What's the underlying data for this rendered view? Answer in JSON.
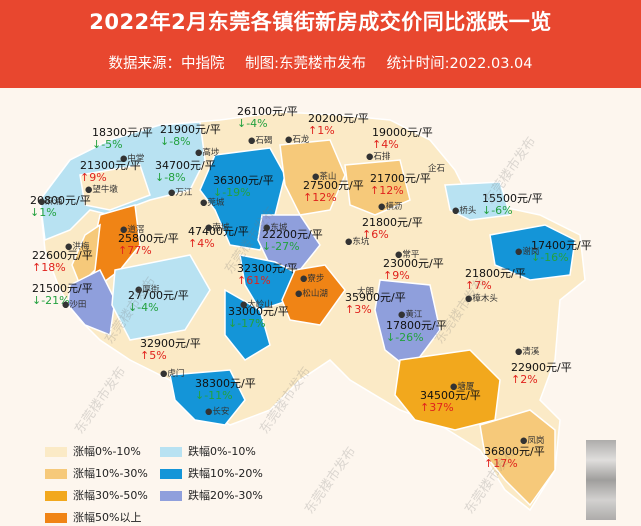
{
  "header": {
    "title": "2022年2月东莞各镇街新房成交价同比涨跌一览",
    "source": "数据来源：中指院",
    "producer": "制图:东莞楼市发布",
    "stat_time": "统计时间:2022.03.04"
  },
  "colors": {
    "up_0_10": "#fbeac6",
    "up_10_30": "#f6c97a",
    "up_30_50": "#f2a81d",
    "up_50_plus": "#f08415",
    "down_0_10": "#b8e2f2",
    "down_10_20": "#1495d8",
    "down_20_30": "#8f9fdc",
    "up_text": "#e0221c",
    "down_text": "#23a13f"
  },
  "legend": [
    {
      "label": "涨幅0%-10%",
      "color": "#fbeac6"
    },
    {
      "label": "跌幅0%-10%",
      "color": "#b8e2f2"
    },
    {
      "label": "涨幅10%-30%",
      "color": "#f6c97a"
    },
    {
      "label": "跌幅10%-20%",
      "color": "#1495d8"
    },
    {
      "label": "涨幅30%-50%",
      "color": "#f2a81d"
    },
    {
      "label": "跌幅20%-30%",
      "color": "#8f9fdc"
    },
    {
      "label": "涨幅50%以上",
      "color": "#f08415"
    }
  ],
  "towns": [
    {
      "name": "中堂",
      "price": "18300元/平",
      "change": "↓-5%",
      "dir": "down"
    },
    {
      "name": "高埗",
      "price": "21900元/平",
      "change": "↓-8%",
      "dir": "down"
    },
    {
      "name": "石碣",
      "price": "26100元/平",
      "change": "↓-4%",
      "dir": "down"
    },
    {
      "name": "石龙",
      "price": "20200元/平",
      "change": "↑1%",
      "dir": "up"
    },
    {
      "name": "石排",
      "price": "19000元/平",
      "change": "↑4%",
      "dir": "up"
    },
    {
      "name": "望牛墩",
      "price": "21300元/平",
      "change": "↑9%",
      "dir": "up"
    },
    {
      "name": "万江",
      "price": "34700元/平",
      "change": "↓-8%",
      "dir": "down"
    },
    {
      "name": "莞城",
      "price": "36300元/平",
      "change": "↓-19%",
      "dir": "down"
    },
    {
      "name": "茶山",
      "price": "27500元/平",
      "change": "↑12%",
      "dir": "up"
    },
    {
      "name": "横沥",
      "price": "21700元/平",
      "change": "↑12%",
      "dir": "up"
    },
    {
      "name": "桥头",
      "price": "15500元/平",
      "change": "↓-6%",
      "dir": "down"
    },
    {
      "name": "麻涌",
      "price": "20800元/平",
      "change": "↓1%",
      "dir": "down"
    },
    {
      "name": "道滘",
      "price": "25800元/平",
      "change": "↑77%",
      "dir": "up"
    },
    {
      "name": "南城",
      "price": "47400元/平",
      "change": "↑4%",
      "dir": "up"
    },
    {
      "name": "东城",
      "price": "22200元/平",
      "change": "↓-27%",
      "dir": "down"
    },
    {
      "name": "东坑",
      "price": "21800元/平",
      "change": "↑6%",
      "dir": "up"
    },
    {
      "name": "洪梅",
      "price": "22600元/平",
      "change": "↑18%",
      "dir": "up"
    },
    {
      "name": "常平",
      "price": "23000元/平",
      "change": "↑9%",
      "dir": "up"
    },
    {
      "name": "谢岗",
      "price": "17400元/平",
      "change": "↓-16%",
      "dir": "down"
    },
    {
      "name": "沙田",
      "price": "21500元/平",
      "change": "↓-21%",
      "dir": "down"
    },
    {
      "name": "厚街",
      "price": "27700元/平",
      "change": "↓-4%",
      "dir": "down"
    },
    {
      "name": "寮步",
      "price": "32300元/平",
      "change": "↑61%",
      "dir": "up"
    },
    {
      "name": "大岭山",
      "price": "33000元/平",
      "change": "↓-17%",
      "dir": "down"
    },
    {
      "name": "松山湖",
      "price": "35900元/平",
      "change": "↑3%",
      "dir": "up"
    },
    {
      "name": "樟木头",
      "price": "21800元/平",
      "change": "↑7%",
      "dir": "up"
    },
    {
      "name": "黄江",
      "price": "17800元/平",
      "change": "↓-26%",
      "dir": "down"
    },
    {
      "name": "虎门",
      "price": "32900元/平",
      "change": "↑5%",
      "dir": "up"
    },
    {
      "name": "清溪",
      "price": "22900元/平",
      "change": "↑2%",
      "dir": "up"
    },
    {
      "name": "长安",
      "price": "38300元/平",
      "change": "↓-11%",
      "dir": "down"
    },
    {
      "name": "塘厦",
      "price": "34500元/平",
      "change": "↑37%",
      "dir": "up"
    },
    {
      "name": "凤岗",
      "price": "36800元/平",
      "change": "↑17%",
      "dir": "up"
    }
  ],
  "place_names": [
    "企石",
    "大朗"
  ],
  "watermark": "东莞楼市发布"
}
